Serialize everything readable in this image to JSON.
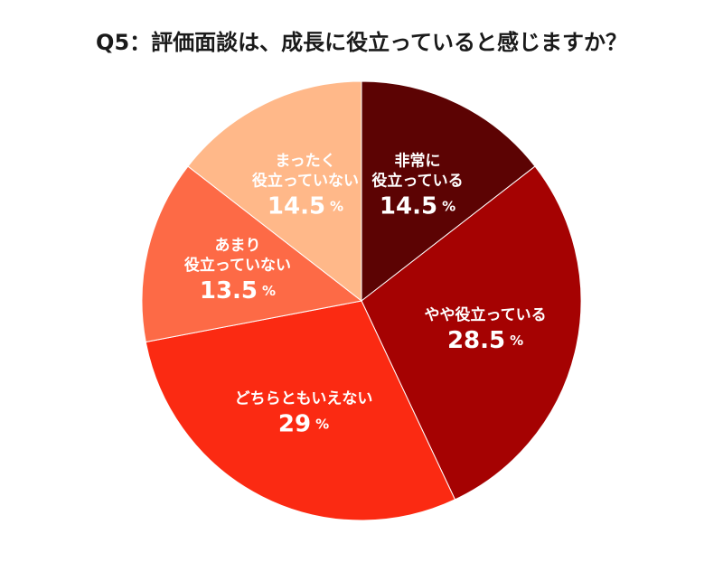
{
  "chart_data": {
    "type": "pie",
    "title": "Q5：評価面談は、成長に役立っていると感じますか？",
    "categories": [
      "非常に\n役立っている",
      "やや役立っている",
      "どちらともいえない",
      "あまり\n役立っていない",
      "まったく\n役立っていない"
    ],
    "values": [
      14.5,
      28.5,
      29,
      13.5,
      14.5
    ],
    "unit": "%",
    "colors": [
      "#5c0303",
      "#a50202",
      "#fb2a12",
      "#fd6a46",
      "#ffb889"
    ]
  }
}
